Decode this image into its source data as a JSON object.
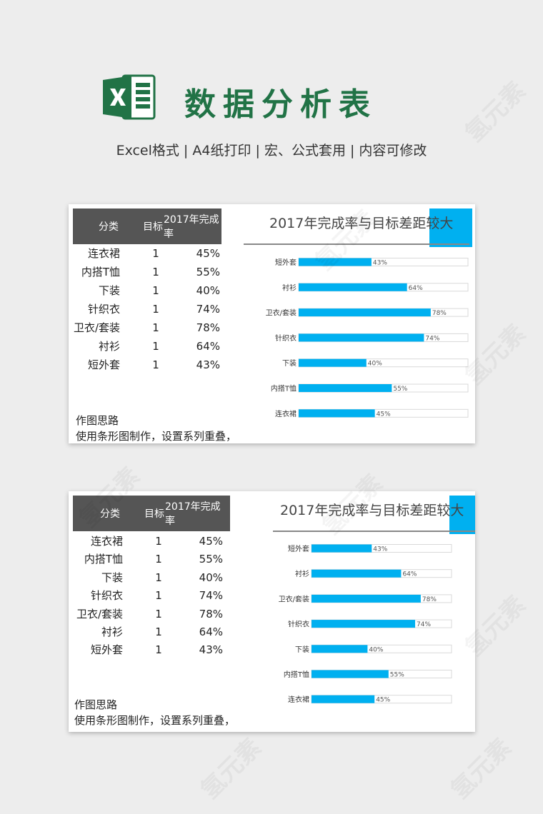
{
  "header": {
    "title": "数据分析表",
    "subtitle": "Excel格式 |  A4纸打印 | 宏、公式套用 | 内容可修改"
  },
  "table": {
    "headers": [
      "分类",
      "目标",
      "2017年完成率"
    ],
    "rows": [
      {
        "category": "连衣裙",
        "target": "1",
        "rate": "45%"
      },
      {
        "category": "内搭T恤",
        "target": "1",
        "rate": "55%"
      },
      {
        "category": "下装",
        "target": "1",
        "rate": "40%"
      },
      {
        "category": "针织衣",
        "target": "1",
        "rate": "74%"
      },
      {
        "category": "卫衣/套装",
        "target": "1",
        "rate": "78%"
      },
      {
        "category": "衬衫",
        "target": "1",
        "rate": "64%"
      },
      {
        "category": "短外套",
        "target": "1",
        "rate": "43%"
      }
    ]
  },
  "notes": {
    "heading": "作图思路",
    "line1": "使用条形图制作，设置系列重叠，"
  },
  "colors": {
    "bar": "#00b0f0",
    "track": "#d9d9d9",
    "header_bg": "#555555",
    "excel_green": "#217346"
  },
  "chart_data": {
    "type": "bar",
    "orientation": "horizontal",
    "title": "2017年完成率与目标差距较大",
    "categories": [
      "短外套",
      "衬衫",
      "卫衣/套装",
      "针织衣",
      "下装",
      "内搭T恤",
      "连衣裙"
    ],
    "series": [
      {
        "values": [
          1,
          1,
          1,
          1,
          1,
          1,
          1
        ]
      },
      {
        "values": [
          0.43,
          0.64,
          0.78,
          0.74,
          0.4,
          0.55,
          0.45
        ]
      }
    ],
    "data_labels": [
      "43%",
      "64%",
      "78%",
      "74%",
      "40%",
      "55%",
      "45%"
    ],
    "xlim": [
      0,
      1
    ]
  }
}
